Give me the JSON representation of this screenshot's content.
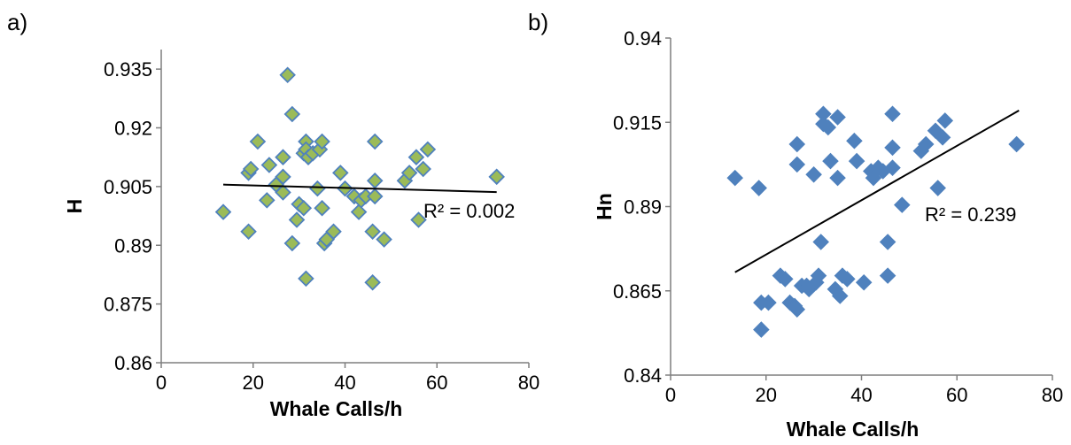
{
  "chart_data": [
    {
      "panel_label": "a)",
      "type": "scatter",
      "xlabel": "Whale Calls/h",
      "ylabel": "H",
      "xlim": [
        0,
        80
      ],
      "ylim": [
        0.86,
        0.94
      ],
      "xticks": [
        "0",
        "20",
        "40",
        "60",
        "80"
      ],
      "yticks": [
        "0.86",
        "0.875",
        "0.89",
        "0.905",
        "0.92",
        "0.935"
      ],
      "marker_color": "#9BBB59",
      "marker_edge": "#4F81BD",
      "annotation": "R² = 0.002",
      "trendline": {
        "x": [
          13.5,
          73
        ],
        "y": [
          0.9055,
          0.9036
        ]
      },
      "points": [
        [
          13.5,
          0.8985
        ],
        [
          19,
          0.8935
        ],
        [
          19,
          0.9085
        ],
        [
          19.5,
          0.9095
        ],
        [
          21,
          0.9165
        ],
        [
          23,
          0.9015
        ],
        [
          23.5,
          0.9105
        ],
        [
          25,
          0.9055
        ],
        [
          26.5,
          0.9035
        ],
        [
          26.5,
          0.9125
        ],
        [
          26.5,
          0.9075
        ],
        [
          27.5,
          0.9335
        ],
        [
          28.5,
          0.9235
        ],
        [
          28.5,
          0.8905
        ],
        [
          29.5,
          0.8965
        ],
        [
          30,
          0.9005
        ],
        [
          31,
          0.9135
        ],
        [
          31,
          0.8995
        ],
        [
          31.5,
          0.9165
        ],
        [
          31.5,
          0.9145
        ],
        [
          31.5,
          0.8815
        ],
        [
          32,
          0.9125
        ],
        [
          33,
          0.9135
        ],
        [
          34,
          0.9045
        ],
        [
          34.5,
          0.9145
        ],
        [
          35,
          0.9165
        ],
        [
          35,
          0.8995
        ],
        [
          35.5,
          0.8905
        ],
        [
          36,
          0.8915
        ],
        [
          37.5,
          0.8935
        ],
        [
          39,
          0.9085
        ],
        [
          40,
          0.9045
        ],
        [
          42,
          0.9025
        ],
        [
          43,
          0.8985
        ],
        [
          43.5,
          0.9015
        ],
        [
          44.5,
          0.9025
        ],
        [
          46,
          0.8935
        ],
        [
          46,
          0.8805
        ],
        [
          46.5,
          0.9025
        ],
        [
          46.5,
          0.9065
        ],
        [
          46.5,
          0.9165
        ],
        [
          48.5,
          0.8915
        ],
        [
          53,
          0.9065
        ],
        [
          54,
          0.9085
        ],
        [
          55.5,
          0.9125
        ],
        [
          56,
          0.8965
        ],
        [
          57,
          0.9095
        ],
        [
          58,
          0.9145
        ],
        [
          73,
          0.9075
        ]
      ]
    },
    {
      "panel_label": "b)",
      "type": "scatter",
      "xlabel": "Whale Calls/h",
      "ylabel": "Hn",
      "xlim": [
        0,
        80
      ],
      "ylim": [
        0.84,
        0.94
      ],
      "xticks": [
        "0",
        "20",
        "40",
        "60",
        "80"
      ],
      "yticks": [
        "0.84",
        "0.865",
        "0.89",
        "0.915",
        "0.94"
      ],
      "marker_color": "#4F81BD",
      "marker_edge": "#4F81BD",
      "annotation": "R² = 0.239",
      "trendline": {
        "x": [
          13.5,
          73
        ],
        "y": [
          0.8705,
          0.9185
        ]
      },
      "points": [
        [
          13.5,
          0.8985
        ],
        [
          18.5,
          0.8955
        ],
        [
          19,
          0.8615
        ],
        [
          19,
          0.8535
        ],
        [
          20.5,
          0.8615
        ],
        [
          23,
          0.8695
        ],
        [
          24,
          0.8685
        ],
        [
          25,
          0.8615
        ],
        [
          26,
          0.8605
        ],
        [
          26.5,
          0.8595
        ],
        [
          26.5,
          0.9085
        ],
        [
          26.5,
          0.9025
        ],
        [
          27.5,
          0.8665
        ],
        [
          28.5,
          0.8665
        ],
        [
          29,
          0.8655
        ],
        [
          30,
          0.8995
        ],
        [
          30.5,
          0.8675
        ],
        [
          31,
          0.8695
        ],
        [
          31.5,
          0.8795
        ],
        [
          32,
          0.9175
        ],
        [
          32,
          0.9145
        ],
        [
          33,
          0.9135
        ],
        [
          33.5,
          0.9035
        ],
        [
          34.5,
          0.8655
        ],
        [
          35,
          0.9165
        ],
        [
          35,
          0.8985
        ],
        [
          35.5,
          0.8635
        ],
        [
          36,
          0.8695
        ],
        [
          37,
          0.8685
        ],
        [
          38.5,
          0.9095
        ],
        [
          39,
          0.9035
        ],
        [
          40.5,
          0.8675
        ],
        [
          42,
          0.9005
        ],
        [
          42.5,
          0.8985
        ],
        [
          43.5,
          0.9015
        ],
        [
          44.5,
          0.9005
        ],
        [
          45.5,
          0.8795
        ],
        [
          45.5,
          0.8695
        ],
        [
          46.5,
          0.9015
        ],
        [
          46.5,
          0.9075
        ],
        [
          46.5,
          0.9175
        ],
        [
          48.5,
          0.8905
        ],
        [
          52.5,
          0.9065
        ],
        [
          53.5,
          0.9085
        ],
        [
          55.5,
          0.9125
        ],
        [
          56,
          0.8955
        ],
        [
          57,
          0.9105
        ],
        [
          57.5,
          0.9155
        ],
        [
          72.5,
          0.9085
        ]
      ]
    }
  ]
}
